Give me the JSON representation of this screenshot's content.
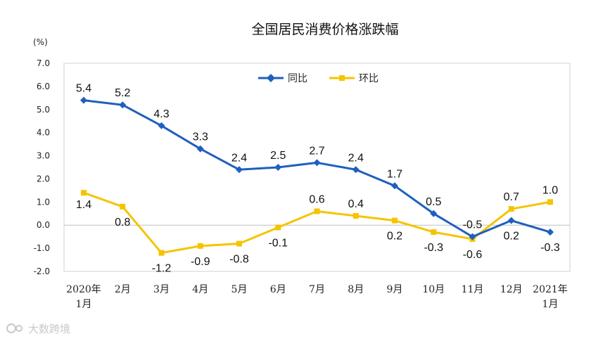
{
  "chart_data": {
    "type": "line",
    "title": "全国居民消费价格涨跌幅",
    "ylabel": "(%)",
    "ylim": [
      -2.0,
      7.0
    ],
    "yticks": [
      "7.0",
      "6.0",
      "5.0",
      "4.0",
      "3.0",
      "2.0",
      "1.0",
      "0.0",
      "-1.0",
      "-2.0"
    ],
    "categories": [
      {
        "line1": "2020年",
        "line2": "1月"
      },
      {
        "line1": "2月",
        "line2": ""
      },
      {
        "line1": "3月",
        "line2": ""
      },
      {
        "line1": "4月",
        "line2": ""
      },
      {
        "line1": "5月",
        "line2": ""
      },
      {
        "line1": "6月",
        "line2": ""
      },
      {
        "line1": "7月",
        "line2": ""
      },
      {
        "line1": "8月",
        "line2": ""
      },
      {
        "line1": "9月",
        "line2": ""
      },
      {
        "line1": "10月",
        "line2": ""
      },
      {
        "line1": "11月",
        "line2": ""
      },
      {
        "line1": "12月",
        "line2": ""
      },
      {
        "line1": "2021年",
        "line2": "1月"
      }
    ],
    "series": [
      {
        "name": "同比",
        "color": "#1f5fbf",
        "marker": "diamond",
        "values": [
          5.4,
          5.2,
          4.3,
          3.3,
          2.4,
          2.5,
          2.7,
          2.4,
          1.7,
          0.5,
          -0.5,
          0.2,
          -0.3
        ],
        "labels": [
          "5.4",
          "5.2",
          "4.3",
          "3.3",
          "2.4",
          "2.5",
          "2.7",
          "2.4",
          "1.7",
          "0.5",
          "-0.5",
          "0.2",
          "-0.3"
        ]
      },
      {
        "name": "环比",
        "color": "#f5c400",
        "marker": "square",
        "values": [
          1.4,
          0.8,
          -1.2,
          -0.9,
          -0.8,
          -0.1,
          0.6,
          0.4,
          0.2,
          -0.3,
          -0.6,
          0.7,
          1.0
        ],
        "labels": [
          "1.4",
          "0.8",
          "-1.2",
          "-0.9",
          "-0.8",
          "-0.1",
          "0.6",
          "0.4",
          "0.2",
          "-0.3",
          "-0.6",
          "0.7",
          "1.0"
        ]
      }
    ],
    "legend": "top-center",
    "grid": false
  },
  "watermark": {
    "text": "大数跨境",
    "icon": "logo-icon"
  }
}
